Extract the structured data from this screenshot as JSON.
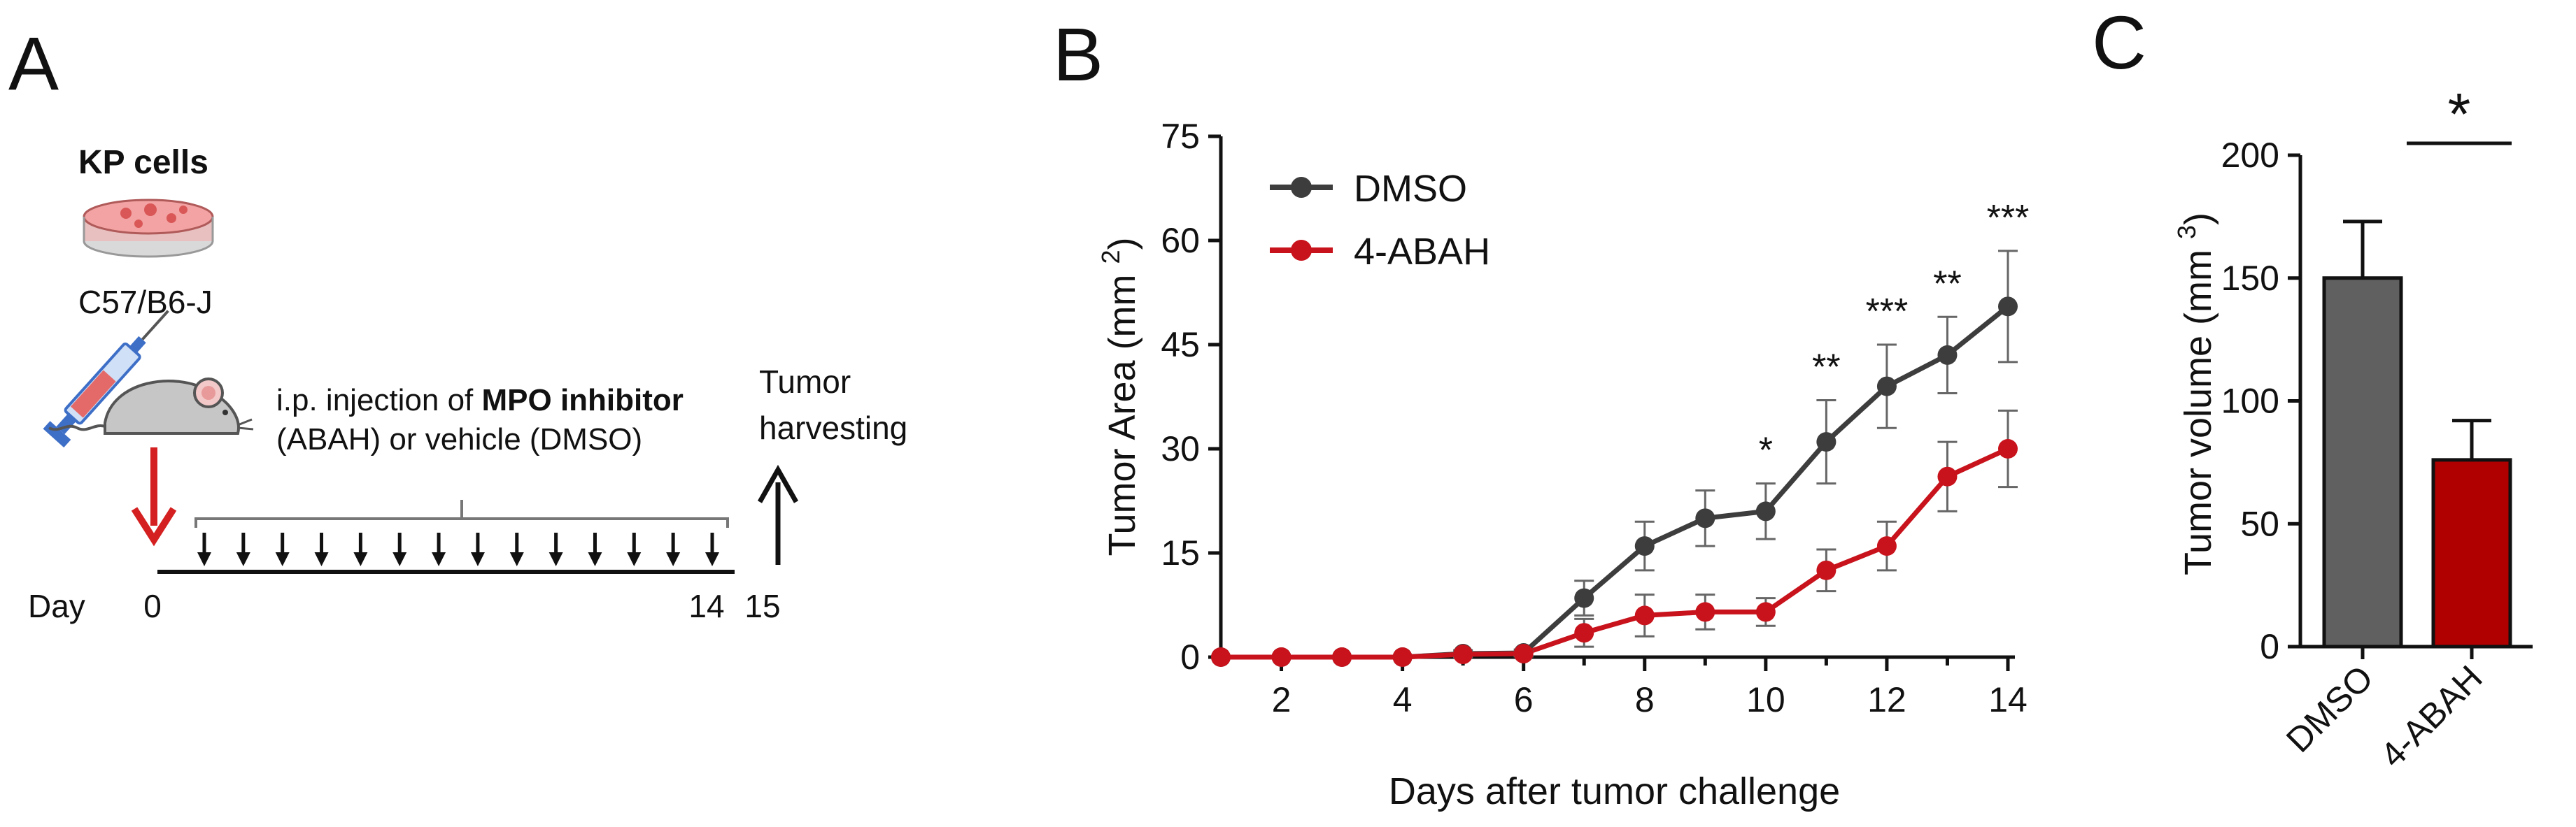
{
  "colors": {
    "dmso": "#3d3d3d",
    "abah": "#c8131c",
    "bar_dmso": "#606060",
    "bar_abah": "#b00000",
    "arrow_red": "#d42020",
    "dish": "#f08a8a",
    "mouse": "#bfbfbf",
    "syringe": "#3e6fc7"
  },
  "panel_a": {
    "label": "A",
    "cells_label": "KP cells",
    "strain": "C57/B6-J",
    "injection_line1_pre": "i.p. injection of ",
    "injection_line1_bold": "MPO inhibitor",
    "injection_line2": "(ABAH) or vehicle (DMSO)",
    "harvest_line1": "Tumor",
    "harvest_line2": "harvesting",
    "day_label": "Day",
    "day_start": "0",
    "day_last_injection": "14",
    "day_harvest": "15",
    "icons": [
      "petri-dish-icon",
      "syringe-icon",
      "mouse-icon",
      "red-arrow-icon",
      "injection-arrow-icon",
      "harvest-arrow-icon"
    ]
  },
  "chart_data": [
    {
      "panel": "B",
      "type": "line",
      "xlabel": "Days after tumor challenge",
      "ylabel": "Tumor Area (mm",
      "ylabel_sup": "2",
      "ylabel_close": ")",
      "xlim": [
        1,
        14
      ],
      "ylim": [
        0,
        75
      ],
      "xticks": [
        "2",
        "4",
        "6",
        "8",
        "10",
        "12",
        "14"
      ],
      "yticks": [
        "0",
        "15",
        "30",
        "45",
        "60",
        "75"
      ],
      "legend": "top-left",
      "x": [
        1,
        2,
        3,
        4,
        5,
        6,
        7,
        8,
        9,
        10,
        11,
        12,
        13,
        14
      ],
      "series": [
        {
          "name": "DMSO",
          "values": [
            0,
            0,
            0,
            0,
            0.5,
            0.6,
            8.5,
            16,
            20,
            21,
            31,
            39,
            43.5,
            50.5
          ],
          "errors": [
            0,
            0,
            0,
            0,
            0.5,
            0.5,
            2.5,
            3.5,
            4,
            4,
            6,
            6,
            5.5,
            8
          ]
        },
        {
          "name": "4-ABAH",
          "values": [
            0,
            0,
            0,
            0,
            0.4,
            0.5,
            3.5,
            6,
            6.5,
            6.5,
            12.5,
            16,
            26,
            30
          ],
          "errors": [
            0,
            0,
            0,
            0,
            0.4,
            0.4,
            2,
            3,
            2.5,
            2,
            3,
            3.5,
            5,
            5.5
          ]
        }
      ],
      "annotations": [
        {
          "x": 10,
          "text": "*"
        },
        {
          "x": 11,
          "text": "**"
        },
        {
          "x": 12,
          "text": "***"
        },
        {
          "x": 13,
          "text": "**"
        },
        {
          "x": 14,
          "text": "***"
        }
      ]
    },
    {
      "panel": "C",
      "type": "bar",
      "ylabel": "Tumor volume (mm",
      "ylabel_sup": "3",
      "ylabel_close": ")",
      "ylim": [
        0,
        200
      ],
      "yticks": [
        "0",
        "50",
        "100",
        "150",
        "200"
      ],
      "categories": [
        "DMSO",
        "4-ABAH"
      ],
      "values": [
        150,
        76
      ],
      "errors": [
        23,
        16
      ],
      "significance": "*"
    }
  ],
  "panel_b_label": "B",
  "panel_c_label": "C"
}
